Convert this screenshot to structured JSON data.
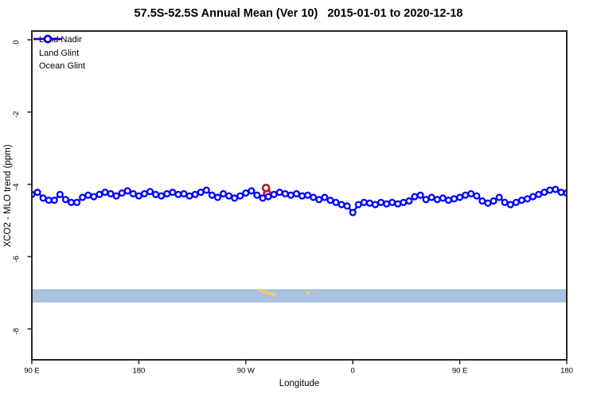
{
  "title": "57.5S-52.5S Annual Mean (Ver 10)   2015-01-01 to 2020-12-18",
  "x_axis": {
    "label": "Longitude",
    "ticks": [
      {
        "pos": 0,
        "label": "90 E"
      },
      {
        "pos": 90,
        "label": "180"
      },
      {
        "pos": 180,
        "label": "90 W"
      },
      {
        "pos": 270,
        "label": "0"
      },
      {
        "pos": 360,
        "label": "90 E"
      },
      {
        "pos": 450,
        "label": "180"
      }
    ]
  },
  "y_axis": {
    "label": "XCO2 - MLO trend (ppm)",
    "ticks": [
      0,
      -2,
      -4,
      -6,
      -8
    ]
  },
  "legend": {
    "items": [
      {
        "label": "Land Nadir",
        "color": "#A52A2A"
      },
      {
        "label": "Land Glint",
        "color": "#FF0000"
      },
      {
        "label": "Ocean Glint",
        "color": "#0000FF"
      }
    ]
  },
  "chart_data": {
    "type": "line",
    "title": "57.5S-52.5S Annual Mean (Ver 10)   2015-01-01 to 2020-12-18",
    "xlabel": "Longitude",
    "ylabel": "XCO2 - MLO trend (ppm)",
    "x_axis_note": "x in degrees eastward along axis, 0 = 90E at left edge, 450 = 180 at right edge",
    "xlim": [
      0,
      450
    ],
    "ylim": [
      0.25,
      -8.85
    ],
    "series": [
      {
        "name": "Ocean Glint",
        "color": "#0000FF",
        "marker": "open-circle",
        "x_start": 0,
        "x_end": 450,
        "values": [
          -4.28,
          -4.22,
          -4.38,
          -4.44,
          -4.44,
          -4.28,
          -4.42,
          -4.5,
          -4.5,
          -4.36,
          -4.3,
          -4.34,
          -4.28,
          -4.22,
          -4.26,
          -4.32,
          -4.24,
          -4.18,
          -4.26,
          -4.32,
          -4.26,
          -4.2,
          -4.28,
          -4.32,
          -4.26,
          -4.22,
          -4.28,
          -4.26,
          -4.32,
          -4.28,
          -4.22,
          -4.16,
          -4.3,
          -4.36,
          -4.26,
          -4.32,
          -4.38,
          -4.32,
          -4.24,
          -4.18,
          -4.3,
          -4.38,
          -4.34,
          -4.28,
          -4.22,
          -4.26,
          -4.3,
          -4.26,
          -4.32,
          -4.3,
          -4.36,
          -4.42,
          -4.36,
          -4.44,
          -4.5,
          -4.56,
          -4.6,
          -4.78,
          -4.56,
          -4.5,
          -4.52,
          -4.56,
          -4.5,
          -4.54,
          -4.5,
          -4.54,
          -4.5,
          -4.46,
          -4.34,
          -4.3,
          -4.42,
          -4.36,
          -4.42,
          -4.38,
          -4.44,
          -4.4,
          -4.36,
          -4.3,
          -4.26,
          -4.32,
          -4.46,
          -4.52,
          -4.46,
          -4.36,
          -4.5,
          -4.56,
          -4.5,
          -4.44,
          -4.4,
          -4.34,
          -4.28,
          -4.22,
          -4.16,
          -4.14,
          -4.22,
          -4.24
        ]
      },
      {
        "name": "Land Glint",
        "color": "#FF0000",
        "marker": "open-circle",
        "points": [
          {
            "x": 198,
            "y": -4.25
          }
        ]
      },
      {
        "name": "Land Nadir",
        "color": "#A52A2A",
        "marker": "open-circle",
        "points": [
          {
            "x": 197,
            "y": -4.1
          }
        ]
      }
    ],
    "band": {
      "y_top": -6.9,
      "y_bottom": -7.27,
      "color": "#A8C2DF"
    },
    "scatter_marks": {
      "color": "#F3CE63",
      "points": [
        {
          "x": 192,
          "y": -6.92
        },
        {
          "x": 195,
          "y": -6.96
        },
        {
          "x": 197,
          "y": -6.98
        },
        {
          "x": 199,
          "y": -7.01
        },
        {
          "x": 202,
          "y": -7.03
        },
        {
          "x": 204,
          "y": -7.05
        },
        {
          "x": 232,
          "y": -7.0
        }
      ]
    },
    "legend_position": "top-left",
    "grid": false
  },
  "colors": {
    "axis": "#262626",
    "text": "#000000",
    "background": "#FFFFFF"
  }
}
